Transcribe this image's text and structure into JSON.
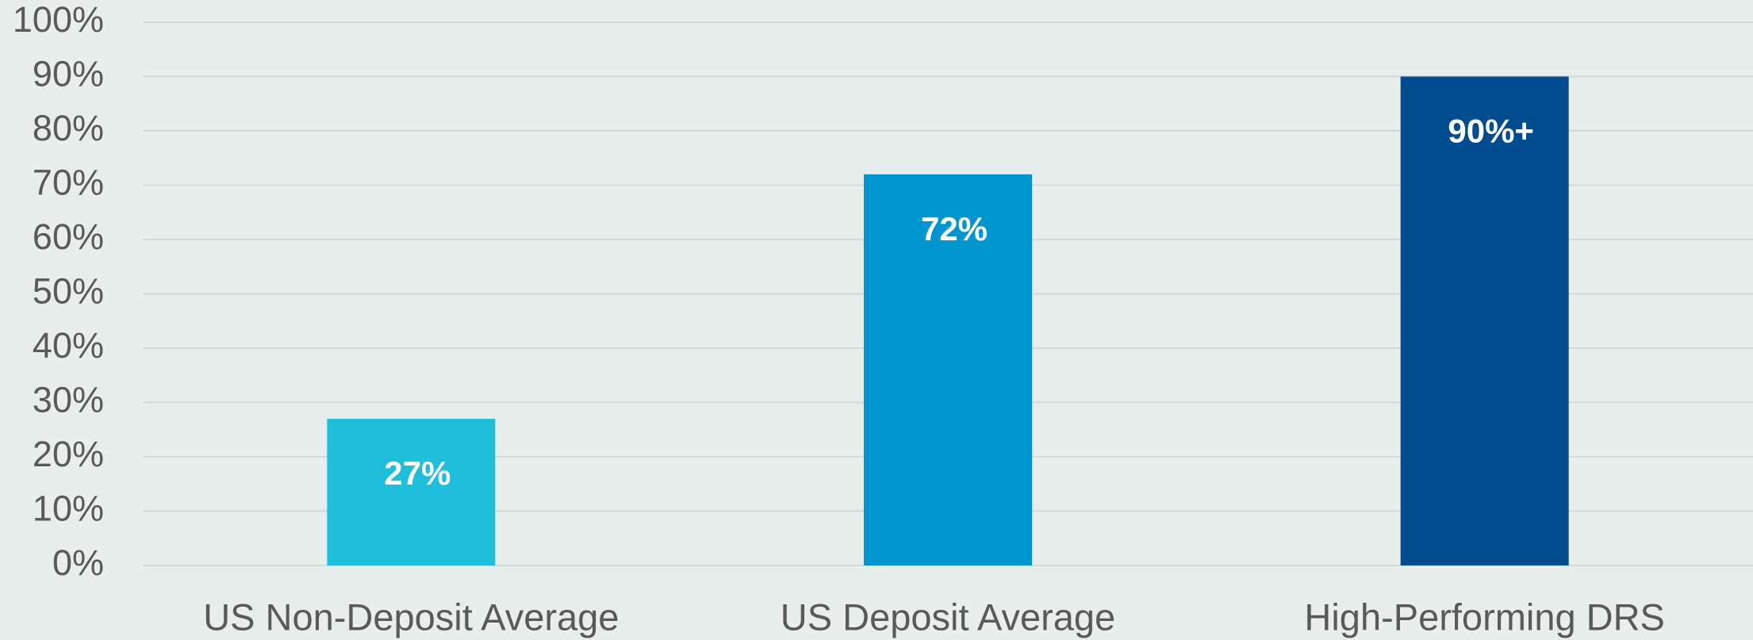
{
  "chart_data": {
    "type": "bar",
    "categories": [
      "US Non-Deposit Average",
      "US Deposit Average",
      "High-Performing DRS"
    ],
    "values": [
      27,
      72,
      90
    ],
    "value_labels": [
      "27%",
      "72%",
      "90%+"
    ],
    "colors": [
      "#1fbfdb",
      "#0095cf",
      "#004c8f"
    ],
    "ylim": [
      0,
      100
    ],
    "yticks": [
      {
        "value": 0,
        "label": "0%"
      },
      {
        "value": 10,
        "label": "10%"
      },
      {
        "value": 20,
        "label": "20%"
      },
      {
        "value": 30,
        "label": "30%"
      },
      {
        "value": 40,
        "label": "40%"
      },
      {
        "value": 50,
        "label": "50%"
      },
      {
        "value": 60,
        "label": "60%"
      },
      {
        "value": 70,
        "label": "70%"
      },
      {
        "value": 80,
        "label": "80%"
      },
      {
        "value": 90,
        "label": "90%"
      },
      {
        "value": 100,
        "label": "100%"
      }
    ],
    "grid": true
  }
}
